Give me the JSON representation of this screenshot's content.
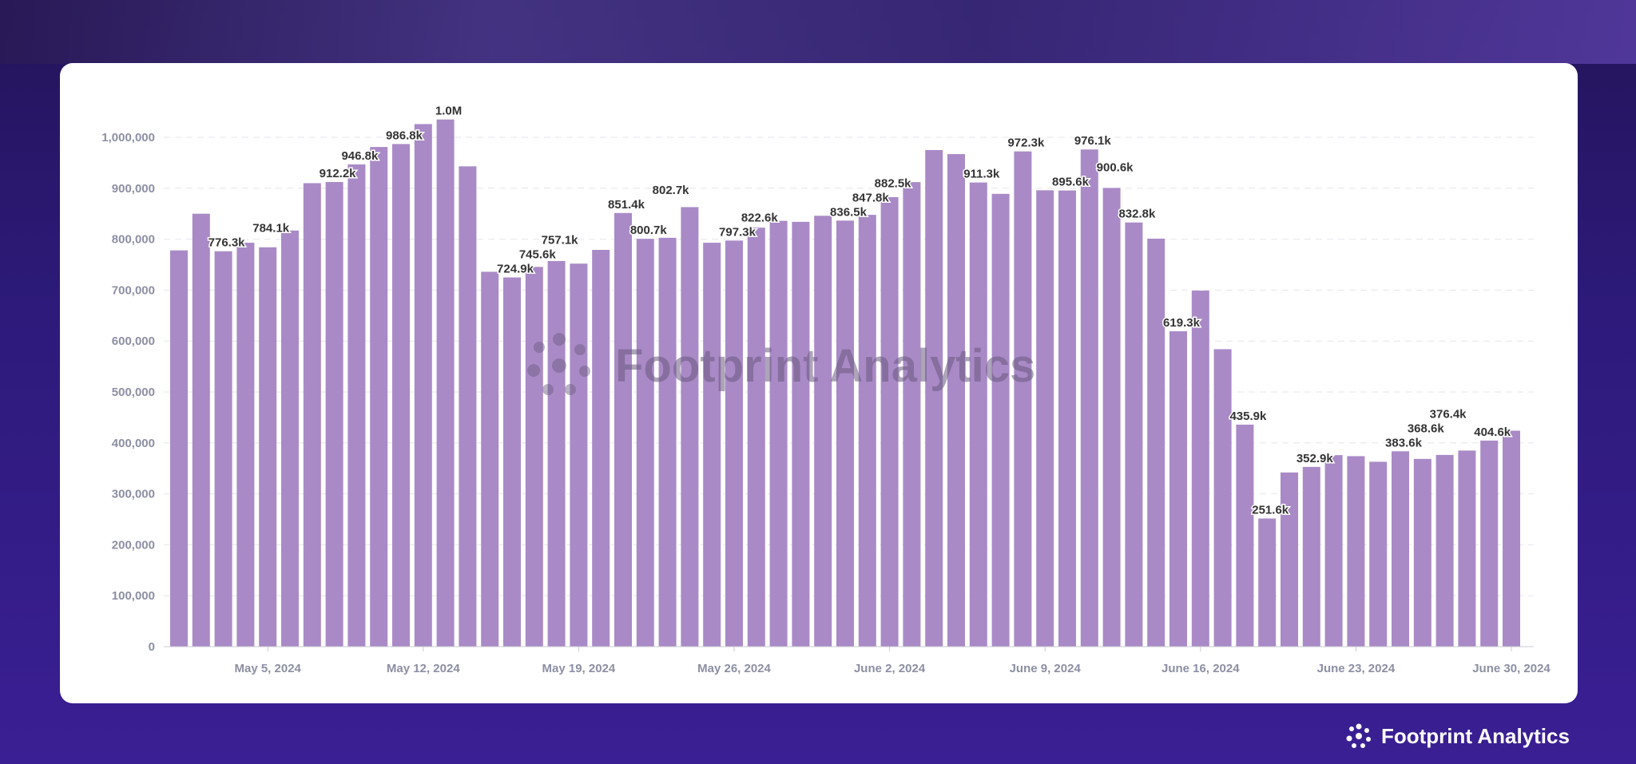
{
  "brand": {
    "name": "Footprint Analytics",
    "watermark": "Footprint Analytics"
  },
  "colors": {
    "bar": "#a98ac6",
    "label": "#333333",
    "axis": "#8c8fa3",
    "background": "#2d1a7a"
  },
  "chart_data": {
    "type": "bar",
    "title": "",
    "xlabel": "",
    "ylabel": "",
    "ylim": [
      0,
      1050000
    ],
    "grid": true,
    "y_ticks": [
      "0",
      "100,000",
      "200,000",
      "300,000",
      "400,000",
      "500,000",
      "600,000",
      "700,000",
      "800,000",
      "900,000",
      "1,000,000"
    ],
    "x_ticks": [
      {
        "date": "2024-05-05",
        "label": "May 5, 2024"
      },
      {
        "date": "2024-05-12",
        "label": "May 12, 2024"
      },
      {
        "date": "2024-05-19",
        "label": "May 19, 2024"
      },
      {
        "date": "2024-05-26",
        "label": "May 26, 2024"
      },
      {
        "date": "2024-06-02",
        "label": "June 2, 2024"
      },
      {
        "date": "2024-06-09",
        "label": "June 9, 2024"
      },
      {
        "date": "2024-06-16",
        "label": "June 16, 2024"
      },
      {
        "date": "2024-06-23",
        "label": "June 23, 2024"
      },
      {
        "date": "2024-06-30",
        "label": "June 30, 2024"
      }
    ],
    "start_date": "2024-05-01",
    "values": [
      778000,
      850000,
      776300,
      793000,
      784100,
      817000,
      910000,
      912200,
      946800,
      981000,
      986800,
      1026000,
      1035000,
      943000,
      736000,
      724900,
      745600,
      757100,
      752000,
      779000,
      851400,
      800700,
      802700,
      863000,
      793000,
      797300,
      822600,
      836000,
      834000,
      846000,
      836500,
      847800,
      882500,
      912000,
      975000,
      967000,
      911300,
      889000,
      972300,
      896000,
      895600,
      976100,
      900600,
      832800,
      801000,
      619300,
      699000,
      584000,
      435900,
      251600,
      342000,
      352900,
      376000,
      374000,
      363000,
      383600,
      368600,
      376400,
      385000,
      404600,
      424000
    ],
    "data_labels": [
      null,
      null,
      "776.3k",
      null,
      "784.1k",
      null,
      null,
      "912.2k",
      "946.8k",
      null,
      "986.8k",
      null,
      "1.0M",
      null,
      null,
      "724.9k",
      "745.6k",
      "757.1k",
      null,
      null,
      "851.4k",
      "800.7k",
      "802.7k",
      null,
      null,
      "797.3k",
      "822.6k",
      null,
      null,
      null,
      "836.5k",
      "847.8k",
      "882.5k",
      null,
      null,
      null,
      "911.3k",
      null,
      "972.3k",
      null,
      "895.6k",
      "976.1k",
      "900.6k",
      "832.8k",
      null,
      "619.3k",
      null,
      null,
      "435.9k",
      "251.6k",
      null,
      "352.9k",
      null,
      null,
      null,
      "383.6k",
      "368.6k",
      "376.4k",
      null,
      "404.6k",
      null
    ]
  }
}
